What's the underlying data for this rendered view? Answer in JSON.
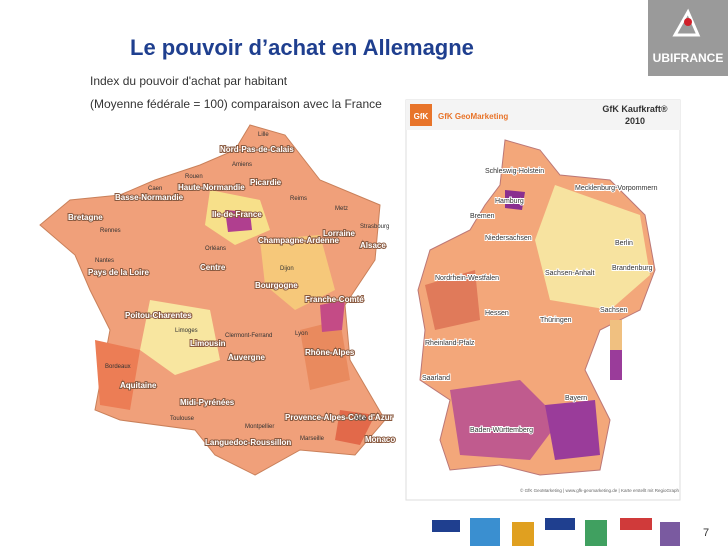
{
  "header": {
    "title": "Le pouvoir d’achat en Allemagne",
    "subtitle_lines": [
      "Index du pouvoir d'achat par habitant",
      "(Moyenne fédérale = 100) comparaison avec la France"
    ]
  },
  "logo": "UBIFRANCE",
  "france_map": {
    "labels": [
      "Nord-Pas-de-Calais",
      "Picardie",
      "Haute-Normandie",
      "Basse-Normandie",
      "Bretagne",
      "Ile-de-France",
      "Champagne-Ardenne",
      "Lorraine",
      "Alsace",
      "Pays de la Loire",
      "Centre",
      "Bourgogne",
      "Franche-Comté",
      "Poitou-Charentes",
      "Limousin",
      "Auvergne",
      "Rhône-Alpes",
      "Aquitaine",
      "Midi-Pyrénées",
      "Languedoc-Roussillon",
      "Provence-Alpes-Côte d'Azur",
      "Monaco"
    ],
    "cities": [
      "Lille",
      "Amiens",
      "Rouen",
      "Caen",
      "Rennes",
      "Nantes",
      "Orléans",
      "Reims",
      "Metz",
      "Strasbourg",
      "Dijon",
      "Limoges",
      "Clermont-Ferrand",
      "Lyon",
      "Bordeaux",
      "Toulouse",
      "Montpellier",
      "Marseille",
      "Nice"
    ]
  },
  "germany_map": {
    "logo": "GfK",
    "brand": "GfK GeoMarketing",
    "title": "GfK Kaufkraft®",
    "year": "2010",
    "labels": [
      "Schleswig-Holstein",
      "Hamburg",
      "Mecklenburg-Vorpommern",
      "Bremen",
      "Niedersachsen",
      "Berlin",
      "Brandenburg",
      "Sachsen-Anhalt",
      "Nordrhein-Westfalen",
      "Hessen",
      "Thüringen",
      "Sachsen",
      "Rheinland-Pfalz",
      "Saarland",
      "Bayern",
      "Baden-Württemberg"
    ],
    "footer": "© GfK GeoMarketing | www.gfk-geomarketing.de | Karte erstellt mit RegioGraph"
  },
  "page_number": "7"
}
